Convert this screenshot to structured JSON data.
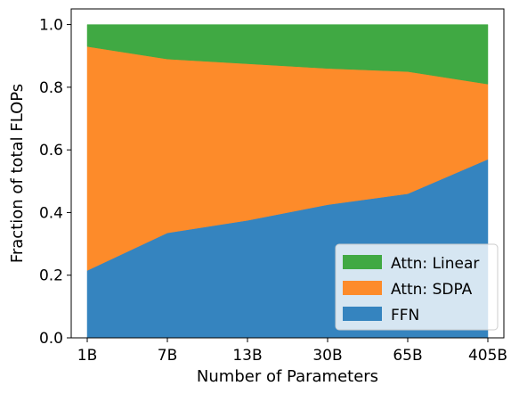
{
  "chart_data": {
    "type": "area",
    "stacked": true,
    "categories": [
      "1B",
      "7B",
      "13B",
      "30B",
      "65B",
      "405B"
    ],
    "series": [
      {
        "name": "FFN",
        "values": [
          0.215,
          0.335,
          0.375,
          0.425,
          0.46,
          0.57
        ],
        "color": "#3584bf"
      },
      {
        "name": "Attn: SDPA",
        "values": [
          0.715,
          0.555,
          0.5,
          0.435,
          0.39,
          0.24
        ],
        "color": "#fd8b2a"
      },
      {
        "name": "Attn: Linear",
        "values": [
          0.07,
          0.11,
          0.125,
          0.14,
          0.15,
          0.19
        ],
        "color": "#40a943"
      }
    ],
    "xlabel": "Number of Parameters",
    "ylabel": "Fraction of total FLOPs",
    "ylim": [
      0.0,
      1.05
    ],
    "yticks": [
      "0.0",
      "0.2",
      "0.4",
      "0.6",
      "0.8",
      "1.0"
    ],
    "grid": false,
    "legend_position": "bottom-right"
  }
}
